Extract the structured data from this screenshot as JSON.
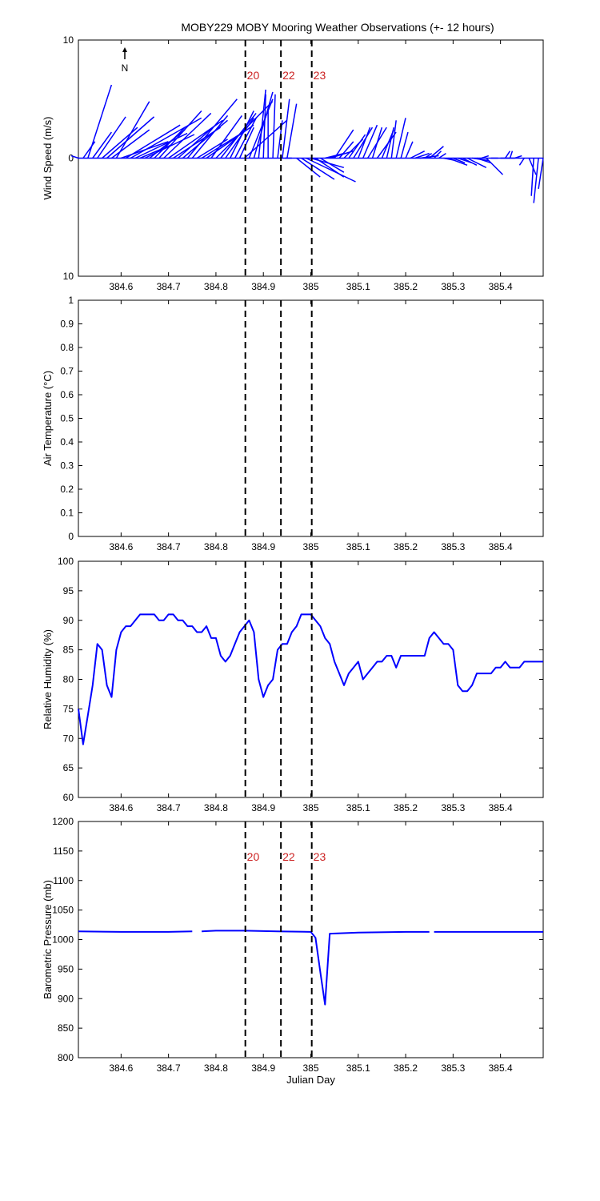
{
  "title": "MOBY229 MOBY Mooring Weather Observations (+- 12 hours)",
  "colors": {
    "series": "#0000ff",
    "marker_text": "#cc2222",
    "axis": "#000000",
    "event_line": "#000000"
  },
  "north_label": "N",
  "chart_data": [
    {
      "type": "line",
      "subtype": "wind-vector-stick",
      "ylabel": "Wind Speed (m/s)",
      "xlabel": "",
      "xlim": [
        384.51,
        385.49
      ],
      "ylim": [
        -10,
        10
      ],
      "y_tick_values": [
        -10,
        0,
        10
      ],
      "y_tick_labels": [
        "10",
        "0",
        "10"
      ],
      "x_ticks": [
        384.6,
        384.7,
        384.8,
        384.9,
        385,
        385.1,
        385.2,
        385.3,
        385.4
      ],
      "x_tick_labels": [
        "384.6",
        "384.7",
        "384.8",
        "384.9",
        "385",
        "385.1",
        "385.2",
        "385.3",
        "385.4"
      ],
      "event_lines": [
        384.862,
        384.937,
        385.002
      ],
      "event_labels": [
        "20",
        "22",
        "23"
      ],
      "vectors": [
        [
          384.51,
          -0.6,
          0.2
        ],
        [
          384.52,
          1.0,
          1.4
        ],
        [
          384.53,
          2.0,
          6.2
        ],
        [
          384.54,
          1.6,
          2.2
        ],
        [
          384.55,
          2.4,
          3.5
        ],
        [
          384.56,
          3.0,
          2.6
        ],
        [
          384.57,
          4.0,
          3.5
        ],
        [
          384.58,
          3.2,
          2.4
        ],
        [
          384.59,
          2.8,
          4.8
        ],
        [
          384.6,
          4.0,
          1.4
        ],
        [
          384.61,
          4.6,
          2.8
        ],
        [
          384.62,
          6.0,
          3.4
        ],
        [
          384.63,
          4.4,
          2.1
        ],
        [
          384.64,
          2.6,
          1.1
        ],
        [
          384.65,
          4.2,
          2.0
        ],
        [
          384.66,
          3.0,
          2.4
        ],
        [
          384.67,
          2.6,
          2.6
        ],
        [
          384.68,
          3.6,
          4.0
        ],
        [
          384.69,
          4.0,
          3.8
        ],
        [
          384.7,
          4.6,
          3.2
        ],
        [
          384.71,
          4.0,
          2.6
        ],
        [
          384.72,
          3.4,
          3.0
        ],
        [
          384.73,
          3.8,
          3.2
        ],
        [
          384.74,
          4.2,
          5.0
        ],
        [
          384.75,
          3.0,
          3.6
        ],
        [
          384.76,
          2.6,
          1.6
        ],
        [
          384.77,
          3.2,
          2.0
        ],
        [
          384.78,
          4.0,
          2.8
        ],
        [
          384.79,
          2.6,
          3.6
        ],
        [
          384.8,
          4.8,
          4.8
        ],
        [
          384.81,
          3.0,
          3.8
        ],
        [
          384.82,
          2.4,
          3.4
        ],
        [
          384.83,
          2.0,
          4.0
        ],
        [
          384.84,
          1.8,
          3.4
        ],
        [
          384.85,
          1.2,
          2.6
        ],
        [
          384.86,
          3.6,
          3.2
        ],
        [
          384.87,
          2.0,
          5.0
        ],
        [
          384.88,
          1.6,
          5.6
        ],
        [
          384.89,
          0.6,
          5.8
        ],
        [
          384.9,
          0.2,
          5.4
        ],
        [
          384.91,
          0.0,
          4.0
        ],
        [
          384.92,
          0.2,
          5.4
        ],
        [
          384.93,
          0.4,
          3.2
        ],
        [
          384.94,
          0.6,
          5.0
        ],
        [
          384.95,
          0.8,
          4.6
        ],
        [
          384.96,
          -0.6,
          0.0
        ],
        [
          384.97,
          2.0,
          -1.6
        ],
        [
          384.98,
          2.8,
          -1.8
        ],
        [
          384.99,
          4.2,
          -2.0
        ],
        [
          385.0,
          2.8,
          -0.8
        ],
        [
          385.01,
          2.4,
          -1.6
        ],
        [
          385.02,
          2.0,
          -1.2
        ],
        [
          385.03,
          1.6,
          0.4
        ],
        [
          385.04,
          2.0,
          0.6
        ],
        [
          385.05,
          1.6,
          2.4
        ],
        [
          385.06,
          1.2,
          1.4
        ],
        [
          385.07,
          1.6,
          1.6
        ],
        [
          385.08,
          1.4,
          2.0
        ],
        [
          385.09,
          1.6,
          2.6
        ],
        [
          385.1,
          1.0,
          2.6
        ],
        [
          385.11,
          1.2,
          2.8
        ],
        [
          385.12,
          1.6,
          2.6
        ],
        [
          385.13,
          0.8,
          2.6
        ],
        [
          385.14,
          1.6,
          2.2
        ],
        [
          385.15,
          1.0,
          2.4
        ],
        [
          385.16,
          0.6,
          2.6
        ],
        [
          385.17,
          0.4,
          3.2
        ],
        [
          385.18,
          0.8,
          3.4
        ],
        [
          385.19,
          0.6,
          2.2
        ],
        [
          385.2,
          0.6,
          1.4
        ],
        [
          385.21,
          1.2,
          0.6
        ],
        [
          385.22,
          1.2,
          0.4
        ],
        [
          385.23,
          1.6,
          0.2
        ],
        [
          385.24,
          0.6,
          0.4
        ],
        [
          385.25,
          1.2,
          1.0
        ],
        [
          385.26,
          0.6,
          0.6
        ],
        [
          385.27,
          0.6,
          0.4
        ],
        [
          385.28,
          1.0,
          -0.2
        ],
        [
          385.29,
          1.6,
          -0.6
        ],
        [
          385.3,
          1.0,
          -0.4
        ],
        [
          385.31,
          1.2,
          -0.4
        ],
        [
          385.32,
          1.2,
          -0.6
        ],
        [
          385.33,
          1.6,
          -0.8
        ],
        [
          385.34,
          1.4,
          -0.2
        ],
        [
          385.35,
          1.2,
          -0.4
        ],
        [
          385.36,
          0.6,
          0.2
        ],
        [
          385.37,
          1.4,
          -1.4
        ],
        [
          385.38,
          0.6,
          0.0
        ],
        [
          385.4,
          1.2,
          0.0
        ],
        [
          385.41,
          0.4,
          0.6
        ],
        [
          385.42,
          0.2,
          0.6
        ],
        [
          385.43,
          0.6,
          0.2
        ],
        [
          385.45,
          -0.4,
          -0.6
        ],
        [
          385.46,
          0.6,
          -1.4
        ],
        [
          385.47,
          -0.2,
          -3.2
        ],
        [
          385.48,
          -0.4,
          -3.8
        ],
        [
          385.49,
          -0.4,
          -2.6
        ]
      ]
    },
    {
      "type": "line",
      "ylabel": "Air Temperature (°C)",
      "xlabel": "",
      "xlim": [
        384.51,
        385.49
      ],
      "ylim": [
        0,
        1
      ],
      "y_tick_values": [
        0,
        0.1,
        0.2,
        0.3,
        0.4,
        0.5,
        0.6,
        0.7,
        0.8,
        0.9,
        1
      ],
      "y_tick_labels": [
        "0",
        "0.1",
        "0.2",
        "0.3",
        "0.4",
        "0.5",
        "0.6",
        "0.7",
        "0.8",
        "0.9",
        "1"
      ],
      "x_ticks": [
        384.6,
        384.7,
        384.8,
        384.9,
        385,
        385.1,
        385.2,
        385.3,
        385.4
      ],
      "x_tick_labels": [
        "384.6",
        "384.7",
        "384.8",
        "384.9",
        "385",
        "385.1",
        "385.2",
        "385.3",
        "385.4"
      ],
      "event_lines": [
        384.862,
        384.937,
        385.002
      ],
      "series": []
    },
    {
      "type": "line",
      "ylabel": "Relative Humidity (%)",
      "xlabel": "",
      "xlim": [
        384.51,
        385.49
      ],
      "ylim": [
        60,
        100
      ],
      "y_tick_values": [
        60,
        65,
        70,
        75,
        80,
        85,
        90,
        95,
        100
      ],
      "y_tick_labels": [
        "60",
        "65",
        "70",
        "75",
        "80",
        "85",
        "90",
        "95",
        "100"
      ],
      "x_ticks": [
        384.6,
        384.7,
        384.8,
        384.9,
        385,
        385.1,
        385.2,
        385.3,
        385.4
      ],
      "x_tick_labels": [
        "384.6",
        "384.7",
        "384.8",
        "384.9",
        "385",
        "385.1",
        "385.2",
        "385.3",
        "385.4"
      ],
      "event_lines": [
        384.862,
        384.937,
        385.002
      ],
      "series": [
        {
          "values": [
            [
              384.51,
              75
            ],
            [
              384.52,
              69
            ],
            [
              384.53,
              74
            ],
            [
              384.54,
              79
            ],
            [
              384.55,
              86
            ],
            [
              384.56,
              85
            ],
            [
              384.57,
              79
            ],
            [
              384.58,
              77
            ],
            [
              384.59,
              85
            ],
            [
              384.6,
              88
            ],
            [
              384.61,
              89
            ],
            [
              384.62,
              89
            ],
            [
              384.63,
              90
            ],
            [
              384.64,
              91
            ],
            [
              384.65,
              91
            ],
            [
              384.66,
              91
            ],
            [
              384.67,
              91
            ],
            [
              384.68,
              90
            ],
            [
              384.69,
              90
            ],
            [
              384.7,
              91
            ],
            [
              384.71,
              91
            ],
            [
              384.72,
              90
            ],
            [
              384.73,
              90
            ],
            [
              384.74,
              89
            ],
            [
              384.75,
              89
            ],
            [
              384.76,
              88
            ],
            [
              384.77,
              88
            ],
            [
              384.78,
              89
            ],
            [
              384.79,
              87
            ],
            [
              384.8,
              87
            ],
            [
              384.81,
              84
            ],
            [
              384.82,
              83
            ],
            [
              384.83,
              84
            ],
            [
              384.84,
              86
            ],
            [
              384.85,
              88
            ],
            [
              384.86,
              89
            ],
            [
              384.87,
              90
            ],
            [
              384.88,
              88
            ],
            [
              384.89,
              80
            ],
            [
              384.9,
              77
            ],
            [
              384.91,
              79
            ],
            [
              384.92,
              80
            ],
            [
              384.93,
              85
            ],
            [
              384.94,
              86
            ],
            [
              384.95,
              86
            ],
            [
              384.96,
              88
            ],
            [
              384.97,
              89
            ],
            [
              384.98,
              91
            ],
            [
              384.99,
              91
            ],
            [
              385.0,
              91
            ],
            [
              385.01,
              90
            ],
            [
              385.02,
              89
            ],
            [
              385.03,
              87
            ],
            [
              385.04,
              86
            ],
            [
              385.05,
              83
            ],
            [
              385.06,
              81
            ],
            [
              385.07,
              79
            ],
            [
              385.08,
              81
            ],
            [
              385.09,
              82
            ],
            [
              385.1,
              83
            ],
            [
              385.11,
              80
            ],
            [
              385.12,
              81
            ],
            [
              385.13,
              82
            ],
            [
              385.14,
              83
            ],
            [
              385.15,
              83
            ],
            [
              385.16,
              84
            ],
            [
              385.17,
              84
            ],
            [
              385.18,
              82
            ],
            [
              385.19,
              84
            ],
            [
              385.2,
              84
            ],
            [
              385.21,
              84
            ],
            [
              385.22,
              84
            ],
            [
              385.23,
              84
            ],
            [
              385.24,
              84
            ],
            [
              385.25,
              87
            ],
            [
              385.26,
              88
            ],
            [
              385.27,
              87
            ],
            [
              385.28,
              86
            ],
            [
              385.29,
              86
            ],
            [
              385.3,
              85
            ],
            [
              385.31,
              79
            ],
            [
              385.32,
              78
            ],
            [
              385.33,
              78
            ],
            [
              385.34,
              79
            ],
            [
              385.35,
              81
            ],
            [
              385.36,
              81
            ],
            [
              385.37,
              81
            ],
            [
              385.38,
              81
            ],
            [
              385.39,
              82
            ],
            [
              385.4,
              82
            ],
            [
              385.41,
              83
            ],
            [
              385.42,
              82
            ],
            [
              385.43,
              82
            ],
            [
              385.44,
              82
            ],
            [
              385.45,
              83
            ],
            [
              385.46,
              83
            ],
            [
              385.47,
              83
            ],
            [
              385.49,
              83
            ]
          ]
        }
      ]
    },
    {
      "type": "line",
      "ylabel": "Barometric Pressure (mb)",
      "xlabel": "Julian Day",
      "xlim": [
        384.51,
        385.49
      ],
      "ylim": [
        800,
        1200
      ],
      "y_tick_values": [
        800,
        850,
        900,
        950,
        1000,
        1050,
        1100,
        1150,
        1200
      ],
      "y_tick_labels": [
        "800",
        "850",
        "900",
        "950",
        "1000",
        "1050",
        "1100",
        "1150",
        "1200"
      ],
      "x_ticks": [
        384.6,
        384.7,
        384.8,
        384.9,
        385,
        385.1,
        385.2,
        385.3,
        385.4
      ],
      "x_tick_labels": [
        "384.6",
        "384.7",
        "384.8",
        "384.9",
        "385",
        "385.1",
        "385.2",
        "385.3",
        "385.4"
      ],
      "event_lines": [
        384.862,
        384.937,
        385.002
      ],
      "event_labels": [
        "20",
        "22",
        "23"
      ],
      "series": [
        {
          "segments": [
            [
              [
                384.51,
                1014
              ],
              [
                384.6,
                1013
              ],
              [
                384.66,
                1013
              ],
              [
                384.7,
                1013
              ],
              [
                384.75,
                1014
              ]
            ],
            [
              [
                384.77,
                1014
              ],
              [
                384.8,
                1015
              ],
              [
                384.86,
                1015
              ],
              [
                384.93,
                1014
              ],
              [
                385.0,
                1013
              ],
              [
                385.01,
                1003
              ],
              [
                385.02,
                945
              ],
              [
                385.03,
                890
              ],
              [
                385.04,
                1010
              ],
              [
                385.1,
                1012
              ],
              [
                385.2,
                1013
              ],
              [
                385.25,
                1013
              ]
            ],
            [
              [
                385.26,
                1013
              ],
              [
                385.3,
                1013
              ],
              [
                385.4,
                1013
              ],
              [
                385.49,
                1013
              ]
            ]
          ]
        }
      ]
    }
  ]
}
